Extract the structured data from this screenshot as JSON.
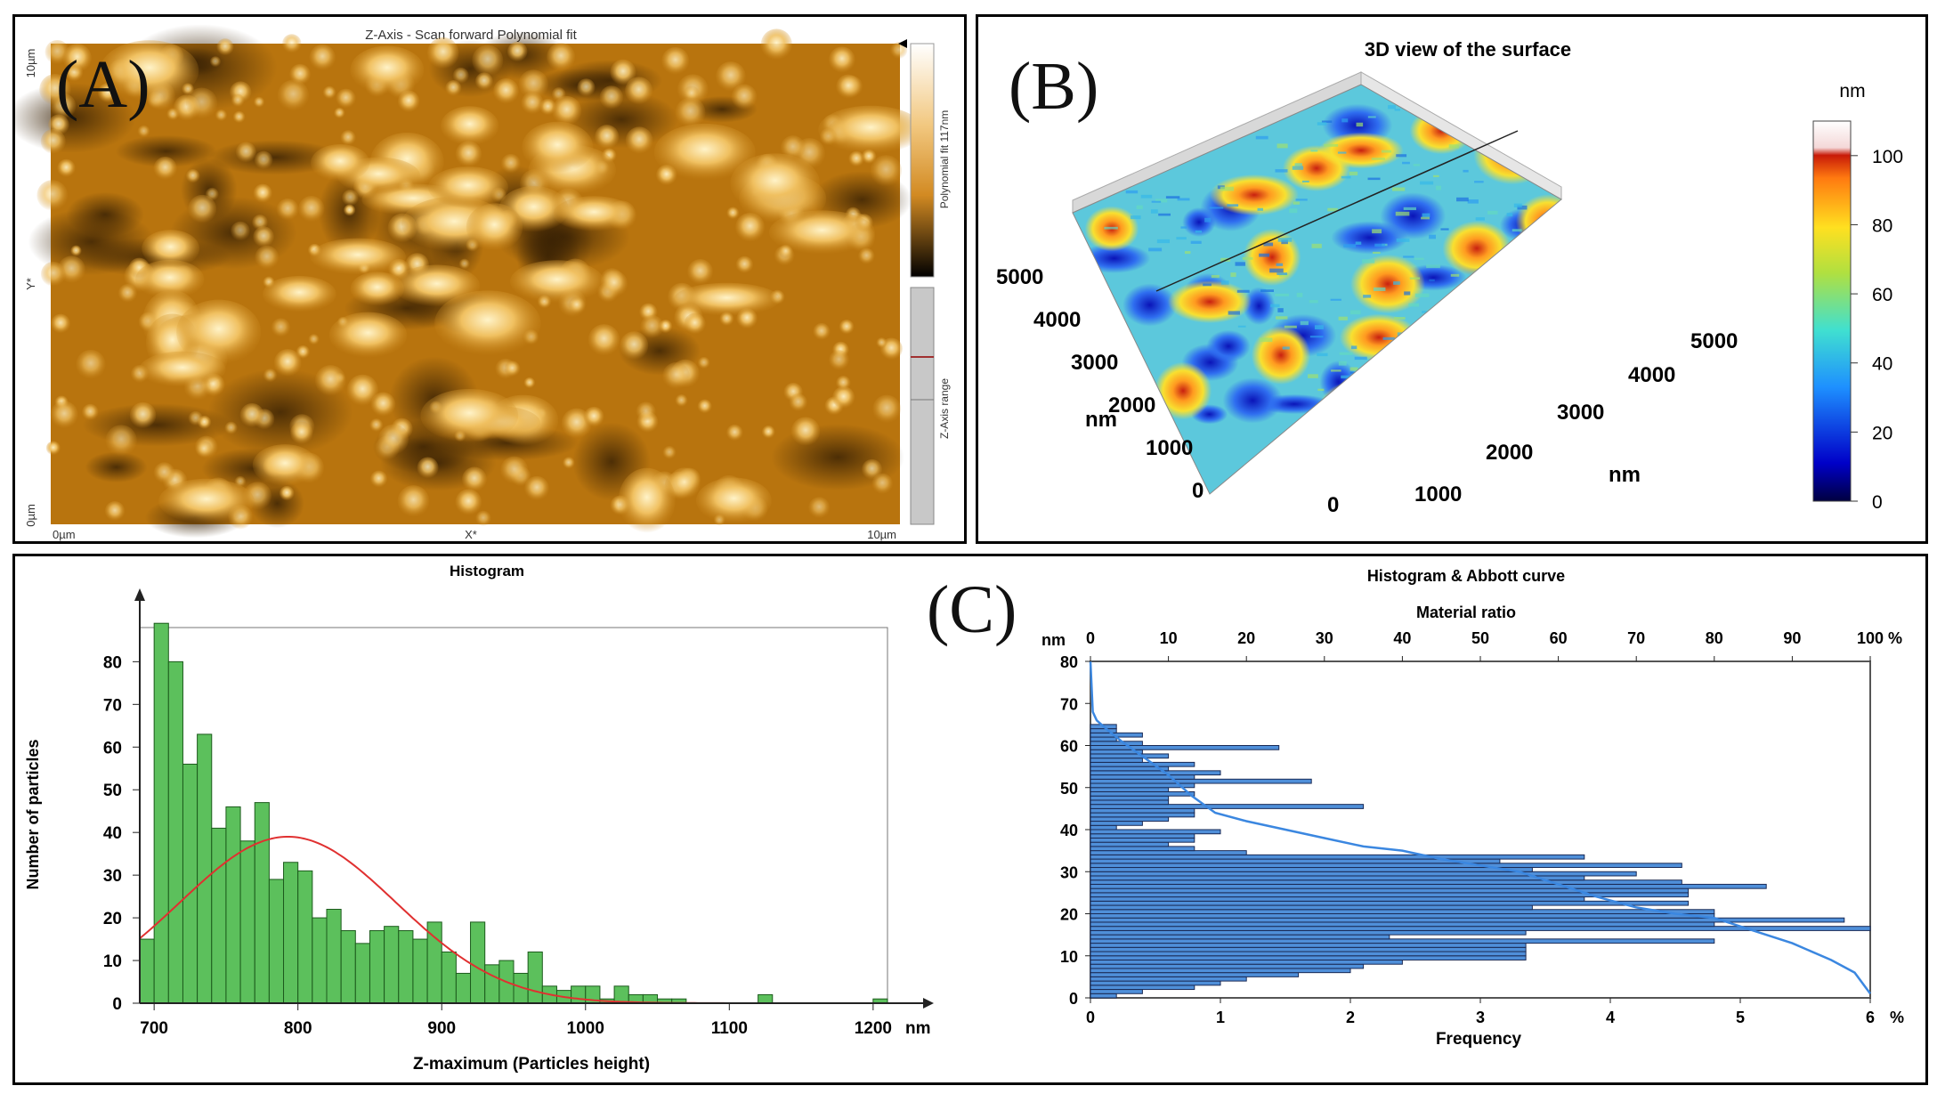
{
  "panel_a": {
    "label": "(A)",
    "title": "Z-Axis - Scan forward  Polynomial fit",
    "y_top": "10µm",
    "y_mid": "Y*",
    "y_bottom": "0µm",
    "x_left": "0µm",
    "x_mid": "X*",
    "x_right": "10µm",
    "colorbar_label": "Polynomial fit 117nm",
    "range_label": "Z-Axis range"
  },
  "panel_b": {
    "label": "(B)",
    "title": "3D view of the surface",
    "unit": "nm",
    "left_ticks": [
      "5000",
      "4000",
      "3000",
      "2000",
      "1000",
      "0"
    ],
    "left_unit": "nm",
    "right_ticks": [
      "5000",
      "4000",
      "3000",
      "2000",
      "1000",
      "0"
    ],
    "right_unit": "nm",
    "colorbar_ticks": [
      "100",
      "80",
      "60",
      "40",
      "20",
      "0"
    ]
  },
  "panel_c_label": "(C)",
  "chart_data": [
    {
      "type": "bar",
      "title": "Histogram",
      "xlabel": "Z-maximum (Particles height)",
      "ylabel": "Number of particles",
      "x_unit": "nm",
      "xlim": [
        690,
        1210
      ],
      "ylim": [
        0,
        88
      ],
      "xticks": [
        700,
        800,
        900,
        1000,
        1100,
        1200
      ],
      "yticks": [
        0,
        10,
        20,
        30,
        40,
        50,
        60,
        70,
        80
      ],
      "bin_width": 10,
      "bin_starts": [
        690,
        700,
        710,
        720,
        730,
        740,
        750,
        760,
        770,
        780,
        790,
        800,
        810,
        820,
        830,
        840,
        850,
        860,
        870,
        880,
        890,
        900,
        910,
        920,
        930,
        940,
        950,
        960,
        970,
        980,
        990,
        1000,
        1010,
        1020,
        1030,
        1040,
        1050,
        1060,
        1070,
        1080,
        1090,
        1100,
        1110,
        1120,
        1130,
        1140,
        1150,
        1160,
        1170,
        1180,
        1190,
        1200
      ],
      "counts": [
        15,
        89,
        80,
        56,
        63,
        41,
        46,
        38,
        47,
        29,
        33,
        31,
        20,
        22,
        17,
        14,
        17,
        18,
        17,
        15,
        19,
        12,
        7,
        19,
        9,
        10,
        7,
        12,
        4,
        3,
        4,
        4,
        1,
        4,
        2,
        2,
        1,
        1,
        0,
        0,
        0,
        0,
        0,
        2,
        0,
        0,
        0,
        0,
        0,
        0,
        0,
        1
      ],
      "fit_curve": {
        "type": "normal",
        "mean": 793,
        "sd": 75,
        "peak": 39,
        "color": "#e03030"
      },
      "bar_color": "#5cc05c"
    },
    {
      "type": "bar",
      "orientation": "horizontal",
      "title": "Histogram & Abbott curve",
      "xlabel": "Frequency",
      "x_unit": "%",
      "xlim": [
        0,
        6
      ],
      "xticks": [
        0,
        1,
        2,
        3,
        4,
        5,
        6
      ],
      "top_axis_title": "Material ratio",
      "top_axis_unit": "%",
      "top_ticks": [
        0,
        10,
        20,
        30,
        40,
        50,
        60,
        70,
        80,
        90,
        100
      ],
      "y_unit": "nm",
      "ylim": [
        0,
        80
      ],
      "yticks": [
        0,
        10,
        20,
        30,
        40,
        50,
        60,
        70,
        80
      ],
      "bin_height": 1,
      "bin_starts": [
        0,
        1,
        2,
        3,
        4,
        5,
        6,
        7,
        8,
        9,
        10,
        11,
        12,
        13,
        14,
        15,
        16,
        17,
        18,
        19,
        20,
        21,
        22,
        23,
        24,
        25,
        26,
        27,
        28,
        29,
        30,
        31,
        32,
        33,
        34,
        35,
        36,
        37,
        38,
        39,
        40,
        41,
        42,
        43,
        44,
        45,
        46,
        47,
        48,
        49,
        50,
        51,
        52,
        53,
        54,
        55,
        56,
        57,
        58,
        59,
        60,
        61,
        62,
        63,
        64
      ],
      "frequencies": [
        0.2,
        0.4,
        0.8,
        1.0,
        1.2,
        1.6,
        2.0,
        2.1,
        2.4,
        3.35,
        3.35,
        3.35,
        3.35,
        4.8,
        2.3,
        3.35,
        6.0,
        4.8,
        5.8,
        4.8,
        4.8,
        3.4,
        4.6,
        3.8,
        4.6,
        4.6,
        5.2,
        4.55,
        3.8,
        4.2,
        3.4,
        4.55,
        3.15,
        3.8,
        1.2,
        0.8,
        0.6,
        0.8,
        0.8,
        1.0,
        0.2,
        0.4,
        0.6,
        0.8,
        0.8,
        2.1,
        0.6,
        0.6,
        0.8,
        0.6,
        0.8,
        1.7,
        0.8,
        1.0,
        0.6,
        0.8,
        0.4,
        0.6,
        0.4,
        1.45,
        0.4,
        0.2,
        0.4,
        0.2,
        0.2
      ],
      "abbott_curve": [
        [
          0,
          80
        ],
        [
          0.3,
          68
        ],
        [
          0.8,
          66
        ],
        [
          2,
          64
        ],
        [
          4,
          61
        ],
        [
          7,
          57
        ],
        [
          10,
          53
        ],
        [
          13,
          48
        ],
        [
          16,
          44
        ],
        [
          20,
          42
        ],
        [
          25,
          40
        ],
        [
          30,
          38
        ],
        [
          35,
          36
        ],
        [
          40,
          35
        ],
        [
          45,
          33
        ],
        [
          50,
          31.5
        ],
        [
          55,
          30
        ],
        [
          60,
          27
        ],
        [
          65,
          24
        ],
        [
          70,
          21.5
        ],
        [
          75,
          20
        ],
        [
          80,
          19
        ],
        [
          85,
          16
        ],
        [
          90,
          13
        ],
        [
          95,
          9
        ],
        [
          98,
          6
        ],
        [
          100,
          1
        ]
      ],
      "bar_color": "#4f8fd9",
      "curve_color": "#3b87e0"
    }
  ]
}
